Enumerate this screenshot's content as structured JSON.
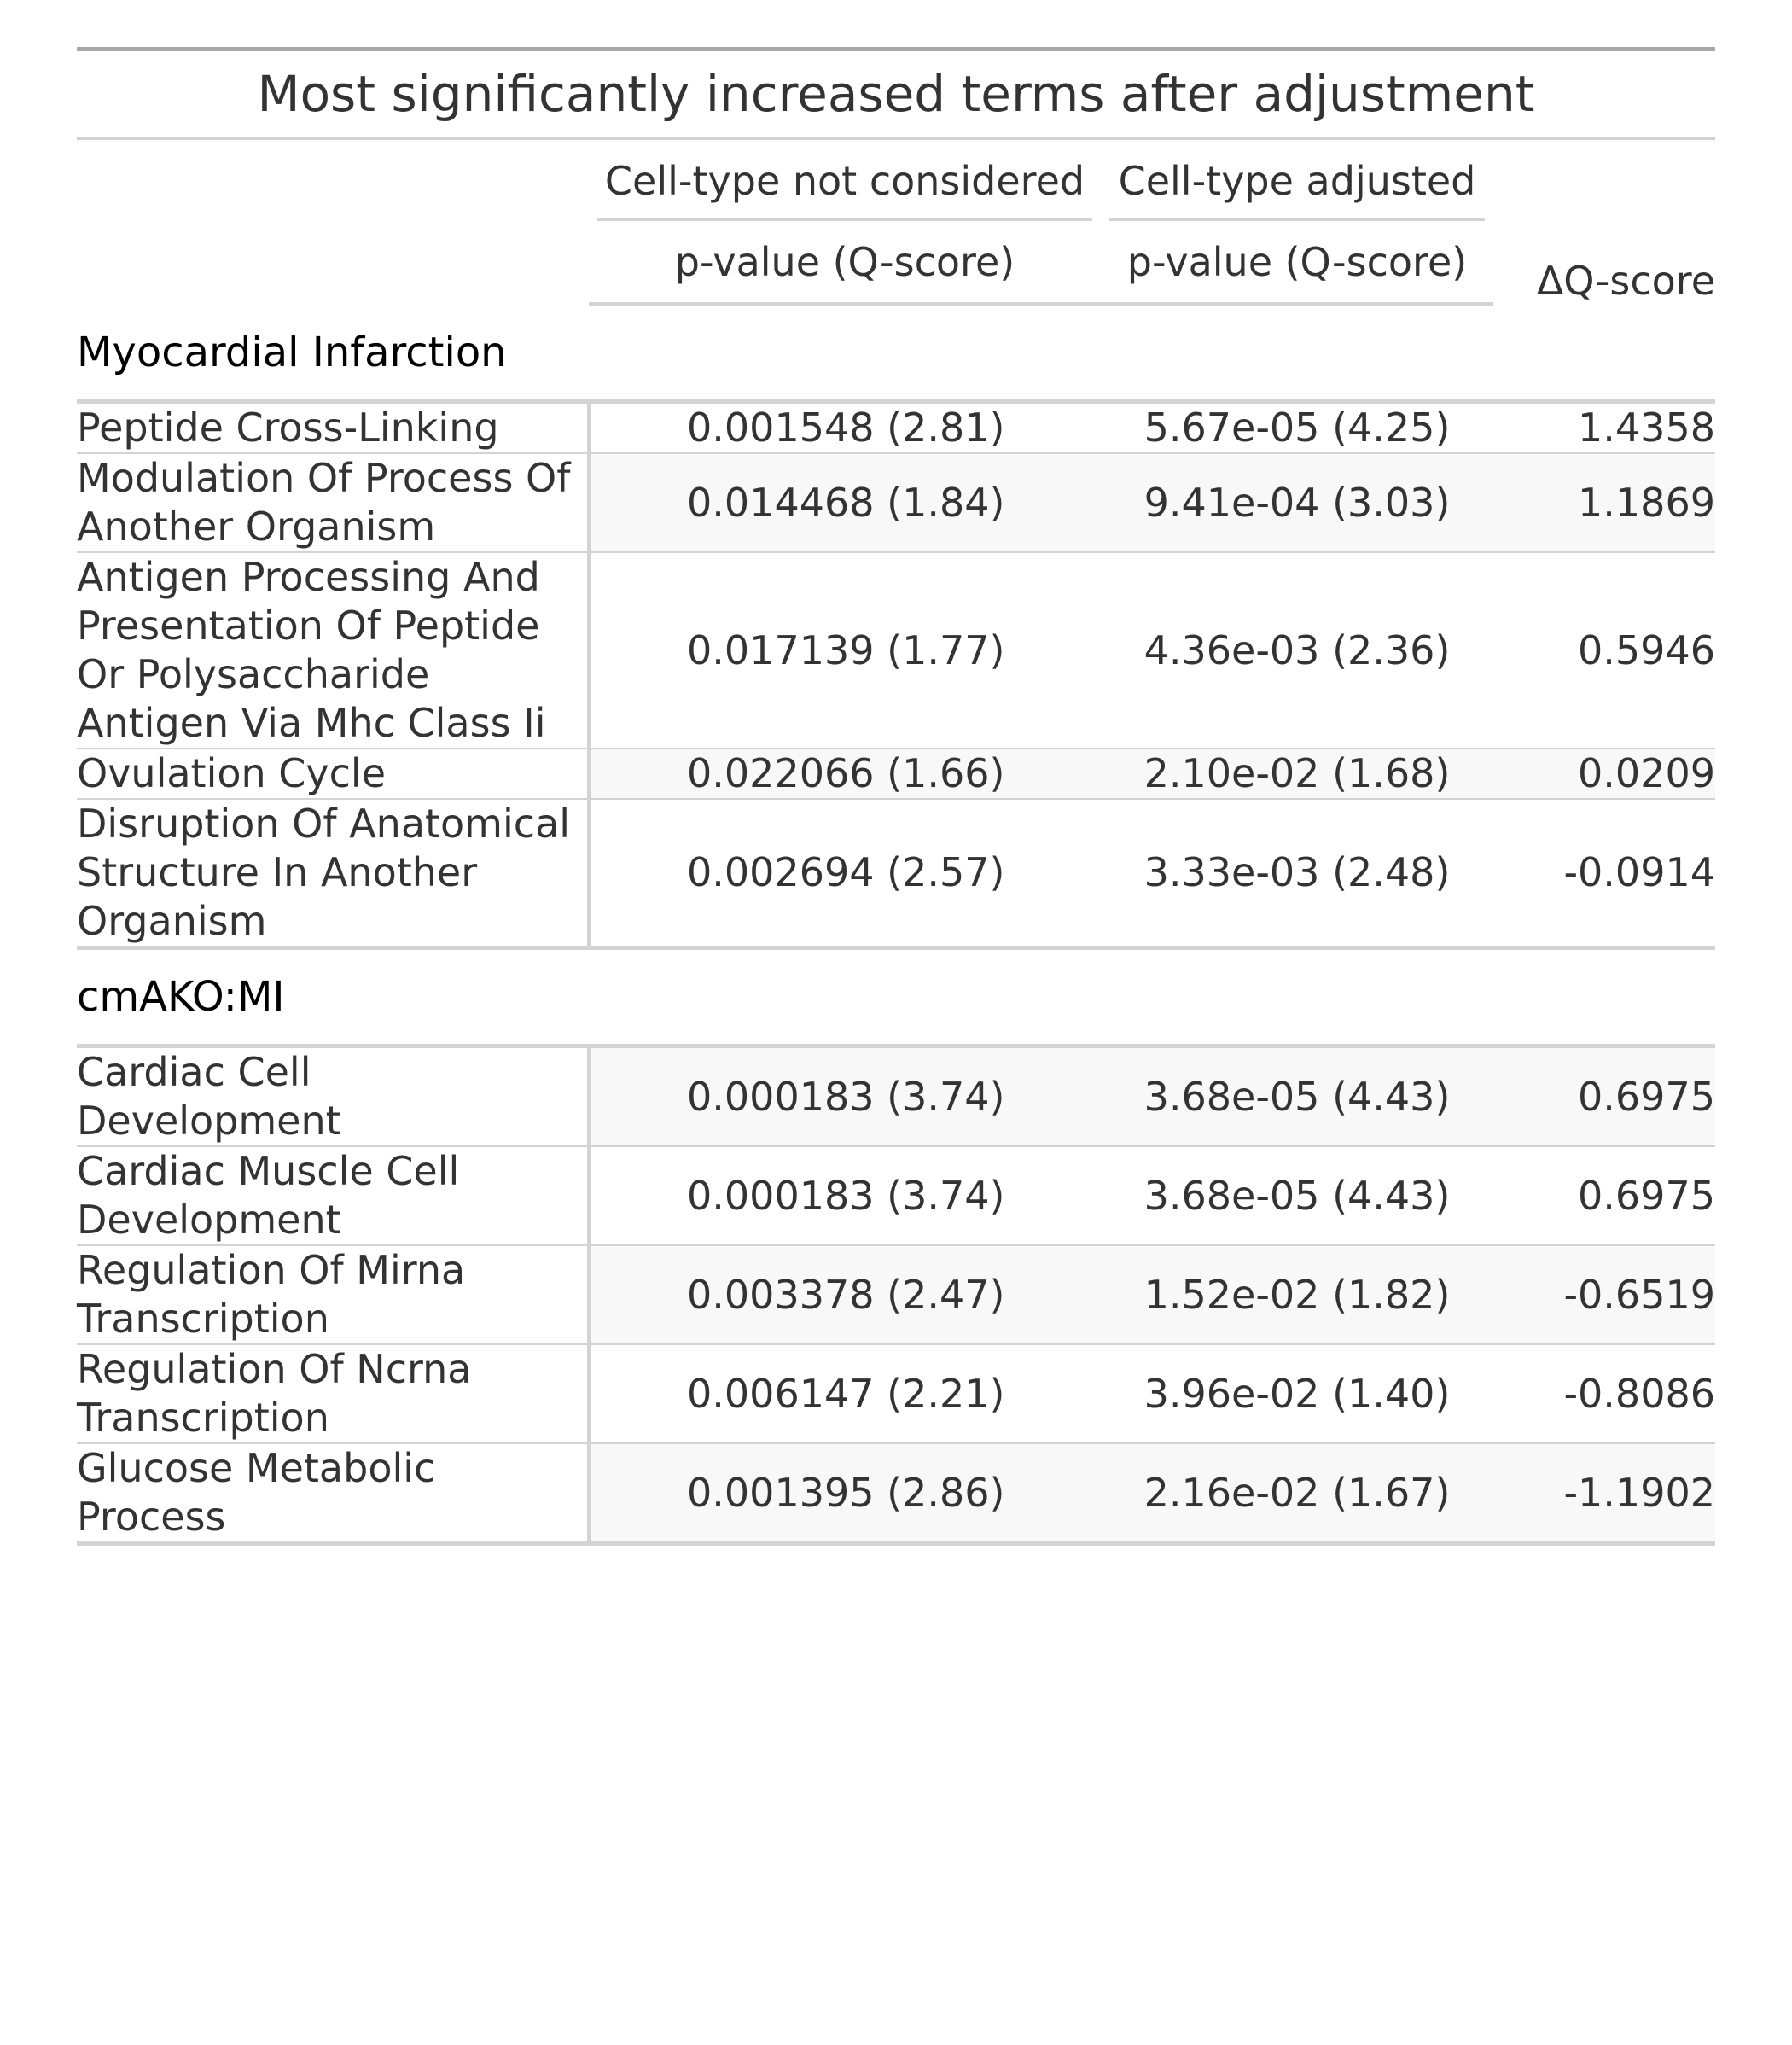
{
  "table": {
    "title": "Most significantly increased terms after adjustment",
    "spanners": {
      "not_considered": "Cell-type not considered",
      "adjusted": "Cell-type adjusted"
    },
    "columns": {
      "pvalue_unadjusted": "p-value (Q-score)",
      "pvalue_adjusted": "p-value (Q-score)",
      "delta": "ΔQ-score"
    },
    "groups": [
      {
        "name": "Myocardial Infarction",
        "rows": [
          {
            "term": "Peptide Cross-Linking",
            "p_unadj": "0.001548 (2.81)",
            "p_adj": "5.67e-05 (4.25)",
            "delta": "1.4358"
          },
          {
            "term": "Modulation Of Process Of Another Organism",
            "p_unadj": "0.014468 (1.84)",
            "p_adj": "9.41e-04 (3.03)",
            "delta": "1.1869"
          },
          {
            "term": "Antigen Processing And Presentation Of Peptide Or Polysaccharide Antigen Via Mhc Class Ii",
            "p_unadj": "0.017139 (1.77)",
            "p_adj": "4.36e-03 (2.36)",
            "delta": "0.5946"
          },
          {
            "term": "Ovulation Cycle",
            "p_unadj": "0.022066 (1.66)",
            "p_adj": "2.10e-02 (1.68)",
            "delta": "0.0209"
          },
          {
            "term": "Disruption Of Anatomical Structure In Another Organism",
            "p_unadj": "0.002694 (2.57)",
            "p_adj": "3.33e-03 (2.48)",
            "delta": "-0.0914"
          }
        ]
      },
      {
        "name": "cmAKO:MI",
        "rows": [
          {
            "term": "Cardiac Cell Development",
            "p_unadj": "0.000183 (3.74)",
            "p_adj": "3.68e-05 (4.43)",
            "delta": "0.6975"
          },
          {
            "term": "Cardiac Muscle Cell Development",
            "p_unadj": "0.000183 (3.74)",
            "p_adj": "3.68e-05 (4.43)",
            "delta": "0.6975"
          },
          {
            "term": "Regulation Of Mirna Transcription",
            "p_unadj": "0.003378 (2.47)",
            "p_adj": "1.52e-02 (1.82)",
            "delta": "-0.6519"
          },
          {
            "term": "Regulation Of Ncrna Transcription",
            "p_unadj": "0.006147 (2.21)",
            "p_adj": "3.96e-02 (1.40)",
            "delta": "-0.8086"
          },
          {
            "term": "Glucose Metabolic Process",
            "p_unadj": "0.001395 (2.86)",
            "p_adj": "2.16e-02 (1.67)",
            "delta": "-1.1902"
          }
        ]
      }
    ]
  }
}
